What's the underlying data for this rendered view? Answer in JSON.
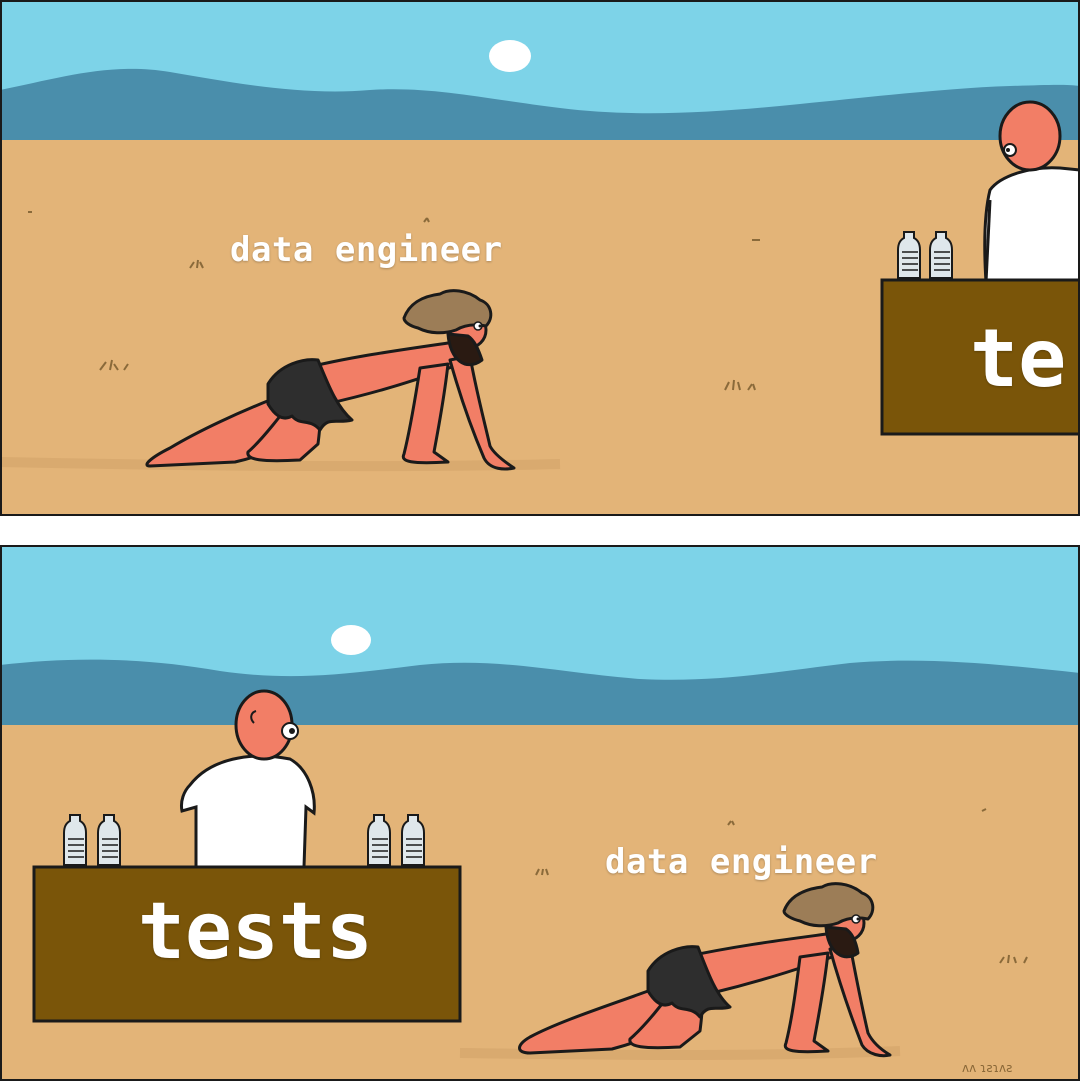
{
  "meme": {
    "top_panel": {
      "crawler_label": "data engineer",
      "stand_label": "te"
    },
    "bottom_panel": {
      "stand_label": "tests",
      "crawler_label": "data engineer",
      "signature": "ᴧᴧ ɿƨɿᴧƨ"
    }
  },
  "colors": {
    "sky": "#7dd3e8",
    "mountains": "#4a8eab",
    "sand": "#e3b478",
    "stand": "#7a5509",
    "skin": "#f27e66",
    "hair": "#9c7d57",
    "beard": "#2a1a12",
    "shirt": "#ffffff",
    "outline": "#1a1a1a"
  },
  "icons": [
    "sun-icon",
    "water-bottle-icon"
  ]
}
